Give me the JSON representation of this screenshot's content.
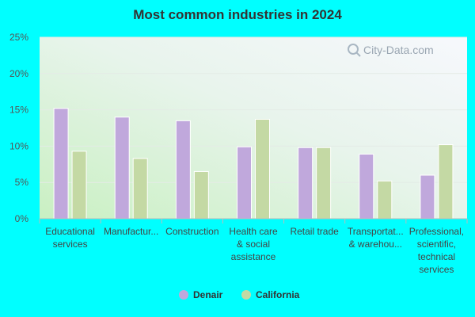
{
  "chart_data": {
    "type": "bar",
    "title": "Most common industries in 2024",
    "categories": [
      [
        "Educational",
        "services"
      ],
      [
        "Manufactur..."
      ],
      [
        "Construction"
      ],
      [
        "Health care",
        "& social",
        "assistance"
      ],
      [
        "Retail trade"
      ],
      [
        "Transportat...",
        "& warehou..."
      ],
      [
        "Professional,",
        "scientific,",
        "technical",
        "services"
      ]
    ],
    "series": [
      {
        "name": "Denair",
        "color": "#c0a8dc",
        "values": [
          15.2,
          14.0,
          13.5,
          9.9,
          9.8,
          8.9,
          6.0
        ]
      },
      {
        "name": "California",
        "color": "#c4d9a4",
        "values": [
          9.3,
          8.3,
          6.5,
          13.7,
          9.8,
          5.2,
          10.2
        ]
      }
    ],
    "ylim": [
      0,
      25
    ],
    "yticks": [
      0,
      5,
      10,
      15,
      20,
      25
    ],
    "ytick_labels": [
      "0%",
      "5%",
      "10%",
      "15%",
      "20%",
      "25%"
    ],
    "xlabel": "",
    "ylabel": "",
    "grid": true,
    "legend_position": "bottom-center"
  },
  "watermark": "City-Data.com"
}
